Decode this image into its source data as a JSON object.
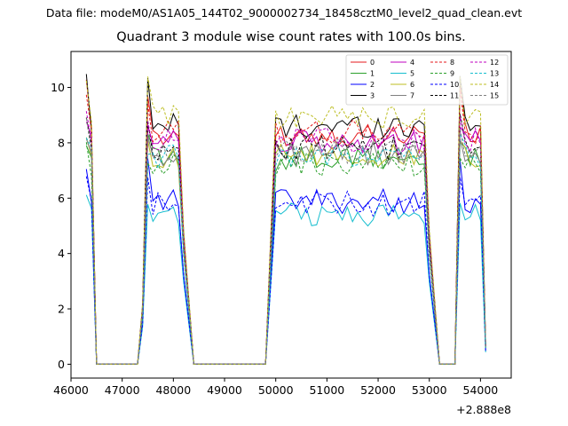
{
  "header": {
    "suptitle": "Data file: modeM0/AS1A05_144T02_9000002734_18458cztM0_level2_quad_clean.evt",
    "title": "Quadrant 3 module wise count rates with 100.0s bins."
  },
  "chart_data": {
    "type": "line",
    "title": "Quadrant 3 module wise count rates with 100.0s bins.",
    "xlabel": "",
    "ylabel": "",
    "x_offset_label": "+2.888e8",
    "xlim": [
      46000,
      54600
    ],
    "ylim": [
      -0.5,
      11.3
    ],
    "xticks": [
      46000,
      47000,
      48000,
      49000,
      50000,
      51000,
      52000,
      53000,
      54000
    ],
    "yticks": [
      0,
      2,
      4,
      6,
      8,
      10
    ],
    "legend_position": "top-right",
    "segments": [
      {
        "x_start": 46300,
        "x_end": 46400,
        "step": 100
      },
      {
        "x_start": 46500,
        "x_end": 47300,
        "step": 100,
        "zero": true
      },
      {
        "x_start": 47400,
        "x_end": 48200,
        "step": 100
      },
      {
        "x_start": 48400,
        "x_end": 49800,
        "step": 100,
        "zero": true
      },
      {
        "x_start": 50000,
        "x_end": 53000,
        "step": 100
      },
      {
        "x_start": 53200,
        "x_end": 53500,
        "step": 100,
        "zero": true
      },
      {
        "x_start": 53600,
        "x_end": 54100,
        "step": 100
      }
    ],
    "series": [
      {
        "name": "0",
        "color": "#e41a1c",
        "dash": "solid",
        "level": 8.3,
        "peak": 9.9
      },
      {
        "name": "1",
        "color": "#2ca02c",
        "dash": "solid",
        "level": 7.4,
        "peak": 8.3
      },
      {
        "name": "2",
        "color": "#0000ff",
        "dash": "solid",
        "level": 5.9,
        "peak": 7.0
      },
      {
        "name": "3",
        "color": "#000000",
        "dash": "solid",
        "level": 8.6,
        "peak": 10.6
      },
      {
        "name": "4",
        "color": "#bf00bf",
        "dash": "solid",
        "level": 8.0,
        "peak": 8.8
      },
      {
        "name": "5",
        "color": "#17becf",
        "dash": "solid",
        "level": 5.4,
        "peak": 6.0
      },
      {
        "name": "6",
        "color": "#bcbd22",
        "dash": "solid",
        "level": 7.5,
        "peak": 8.5
      },
      {
        "name": "7",
        "color": "#808080",
        "dash": "solid",
        "level": 7.6,
        "peak": 8.3
      },
      {
        "name": "8",
        "color": "#e41a1c",
        "dash": "dashed",
        "level": 8.4,
        "peak": 9.7
      },
      {
        "name": "9",
        "color": "#2ca02c",
        "dash": "dashed",
        "level": 7.2,
        "peak": 7.6
      },
      {
        "name": "10",
        "color": "#0000ff",
        "dash": "dashed",
        "level": 5.8,
        "peak": 6.5
      },
      {
        "name": "11",
        "color": "#000000",
        "dash": "dashed",
        "level": 7.8,
        "peak": 9.2
      },
      {
        "name": "12",
        "color": "#bf00bf",
        "dash": "dashed",
        "level": 8.1,
        "peak": 8.7
      },
      {
        "name": "13",
        "color": "#17becf",
        "dash": "dashed",
        "level": 7.5,
        "peak": 7.9
      },
      {
        "name": "14",
        "color": "#bcbd22",
        "dash": "dashed",
        "level": 8.9,
        "peak": 10.3
      },
      {
        "name": "15",
        "color": "#808080",
        "dash": "dashed",
        "level": 7.7,
        "peak": 8.5
      }
    ]
  }
}
